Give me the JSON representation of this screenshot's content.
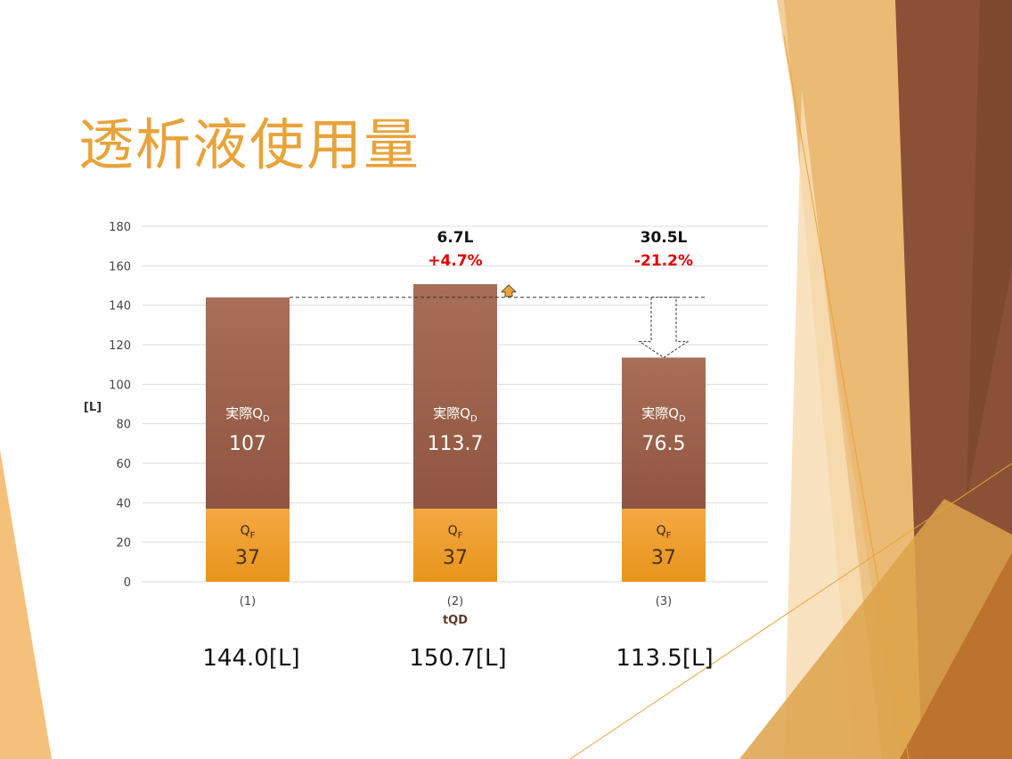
{
  "slide": {
    "title": "透析液使用量",
    "colors": {
      "title": "#E8A33A",
      "deco_light": "#F5C98A",
      "deco_mid": "#E8A33A",
      "deco_dark": "#8B5136"
    }
  },
  "chart_data": {
    "type": "bar",
    "stacked": true,
    "categories": [
      "(1)",
      "(2)",
      "(3)"
    ],
    "xlabel": "tQD",
    "ylabel": "[L]",
    "ylim": [
      0,
      180
    ],
    "yticks": [
      0,
      20,
      40,
      60,
      80,
      100,
      120,
      140,
      160,
      180
    ],
    "grid": true,
    "series": [
      {
        "label": "QF",
        "label_sub": "F",
        "values": [
          37,
          37,
          37
        ],
        "color_top": "#F2A843",
        "color_bottom": "#E8951A"
      },
      {
        "label": "実際Q",
        "label_sub": "D",
        "values": [
          107,
          113.7,
          76.5
        ],
        "value_labels": [
          "107",
          "113.7",
          "76.5"
        ],
        "color_top": "#A86E58",
        "color_bottom": "#8F5540"
      }
    ],
    "bar_q_label": "Q",
    "totals": [
      "144.0[L]",
      "150.7[L]",
      "113.5[L]"
    ],
    "reference_line": 144,
    "annotations": [
      {
        "category": "(2)",
        "diff": "6.7L",
        "pct": "+4.7%",
        "direction": "up"
      },
      {
        "category": "(3)",
        "diff": "30.5L",
        "pct": "-21.2%",
        "direction": "down"
      }
    ]
  }
}
